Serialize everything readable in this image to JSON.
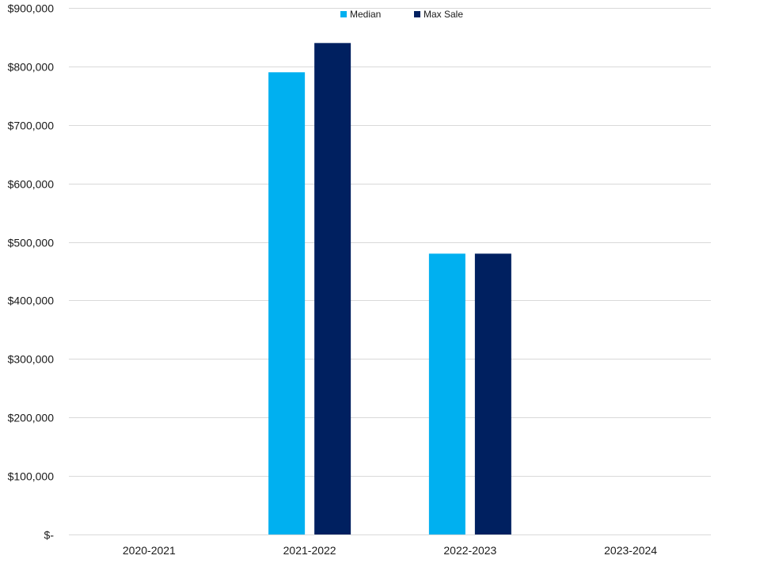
{
  "chart_data": {
    "type": "bar",
    "title": "",
    "xlabel": "",
    "ylabel": "",
    "categories": [
      "2020-2021",
      "2021-2022",
      "2022-2023",
      "2023-2024"
    ],
    "series": [
      {
        "name": "Median",
        "color": "#00B0F0",
        "values": [
          0,
          790000,
          480000,
          0
        ]
      },
      {
        "name": "Max Sale",
        "color": "#002060",
        "values": [
          0,
          840000,
          480000,
          0
        ]
      }
    ],
    "ylim": [
      0,
      900000
    ],
    "yticks": [
      {
        "value": 0,
        "label": "$-"
      },
      {
        "value": 100000,
        "label": "$100,000"
      },
      {
        "value": 200000,
        "label": "$200,000"
      },
      {
        "value": 300000,
        "label": "$300,000"
      },
      {
        "value": 400000,
        "label": "$400,000"
      },
      {
        "value": 500000,
        "label": "$500,000"
      },
      {
        "value": 600000,
        "label": "$600,000"
      },
      {
        "value": 700000,
        "label": "$700,000"
      },
      {
        "value": 800000,
        "label": "$800,000"
      },
      {
        "value": 900000,
        "label": "$900,000"
      }
    ],
    "grid": true,
    "legend_position": "top-center"
  }
}
